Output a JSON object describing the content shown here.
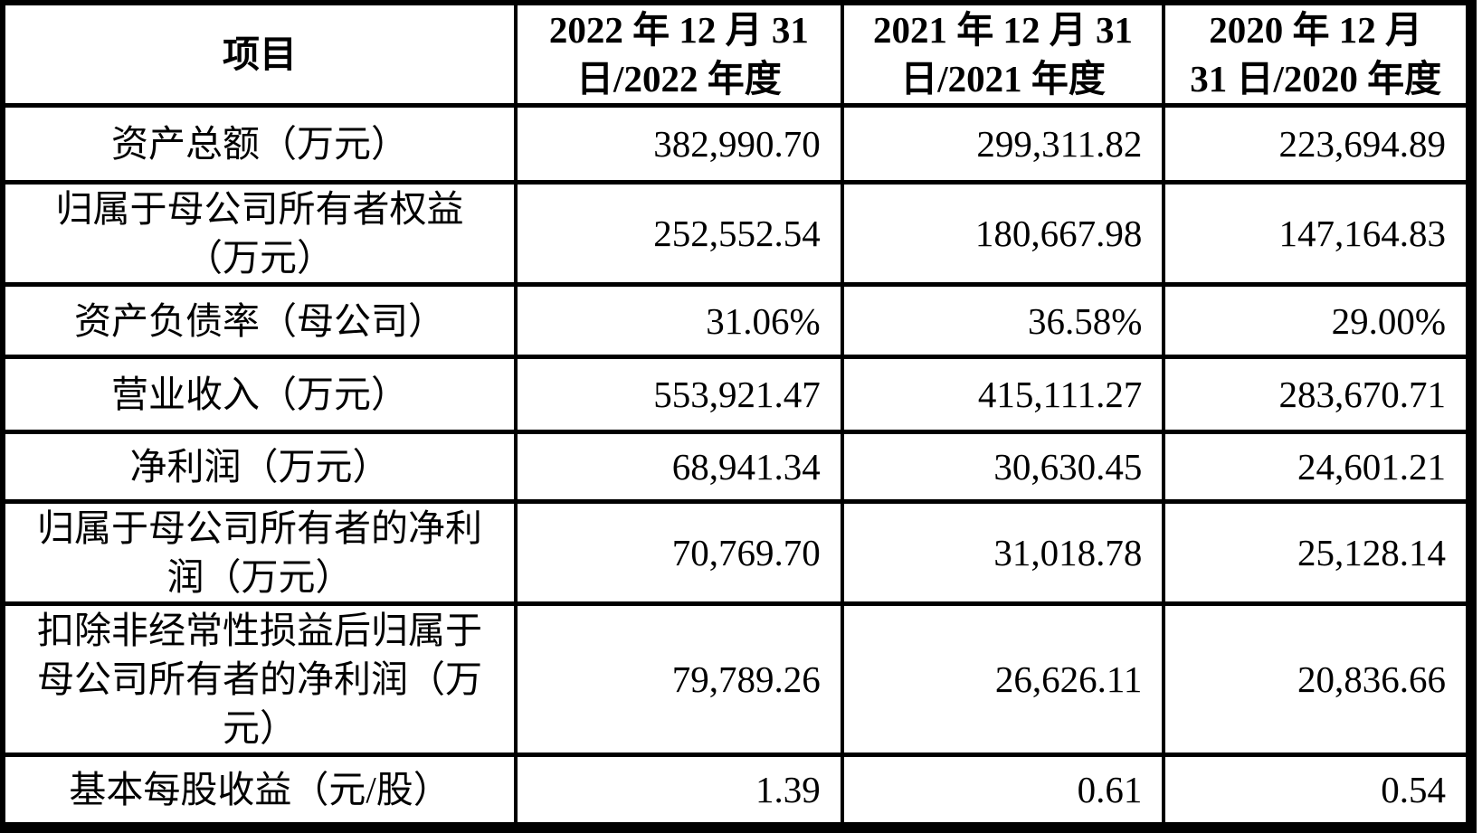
{
  "table": {
    "header": {
      "item_label": "项目",
      "columns": [
        {
          "line1": "2022 年 12 月 31",
          "line2": "日/2022 年度"
        },
        {
          "line1": "2021 年 12 月 31",
          "line2": "日/2021 年度"
        },
        {
          "line1": "2020 年 12 月",
          "line2": "31 日/2020 年度"
        }
      ]
    },
    "rows": [
      {
        "label_lines": [
          "资产总额（万元）"
        ],
        "values": [
          "382,990.70",
          "299,311.82",
          "223,694.89"
        ]
      },
      {
        "label_lines": [
          "归属于母公司所有者权益",
          "（万元）"
        ],
        "values": [
          "252,552.54",
          "180,667.98",
          "147,164.83"
        ]
      },
      {
        "label_lines": [
          "资产负债率（母公司）"
        ],
        "values": [
          "31.06%",
          "36.58%",
          "29.00%"
        ]
      },
      {
        "label_lines": [
          "营业收入（万元）"
        ],
        "values": [
          "553,921.47",
          "415,111.27",
          "283,670.71"
        ]
      },
      {
        "label_lines": [
          "净利润（万元）"
        ],
        "values": [
          "68,941.34",
          "30,630.45",
          "24,601.21"
        ]
      },
      {
        "label_lines": [
          "归属于母公司所有者的净利",
          "润（万元）"
        ],
        "values": [
          "70,769.70",
          "31,018.78",
          "25,128.14"
        ]
      },
      {
        "label_lines": [
          "扣除非经常性损益后归属于",
          "母公司所有者的净利润（万",
          "元）"
        ],
        "values": [
          "79,789.26",
          "26,626.11",
          "20,836.66"
        ]
      },
      {
        "label_lines": [
          "基本每股收益（元/股）"
        ],
        "values": [
          "1.39",
          "0.61",
          "0.54"
        ]
      }
    ],
    "colors": {
      "border": "#000000",
      "background": "#ffffff",
      "text": "#000000"
    }
  }
}
